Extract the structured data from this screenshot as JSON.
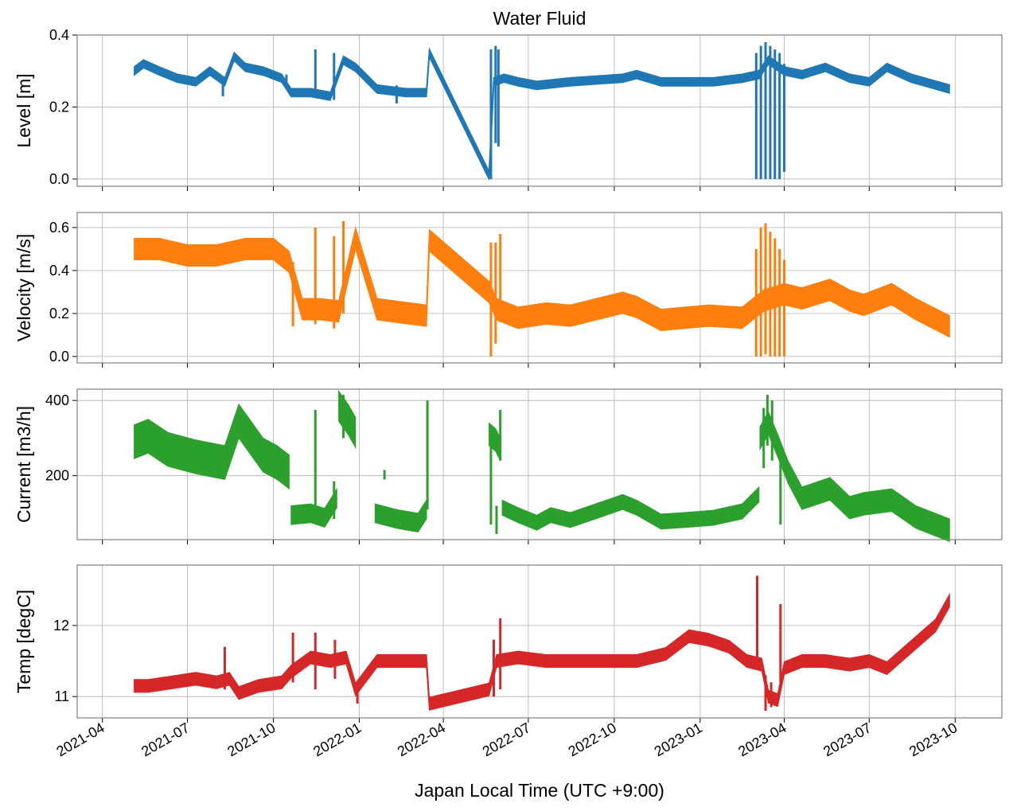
{
  "title": "Water Fluid",
  "chart_data": {
    "type": "line",
    "title": "Water Fluid",
    "xlabel": "Japan Local Time (UTC +9:00)",
    "x_ticks": [
      "2021-04",
      "2021-07",
      "2021-10",
      "2022-01",
      "2022-04",
      "2022-07",
      "2022-10",
      "2023-01",
      "2023-04",
      "2023-07",
      "2023-10"
    ],
    "xlim": [
      "2021-03-05",
      "2023-11-20"
    ],
    "grid": true,
    "panels": [
      {
        "name": "level",
        "ylabel": "Level [m]",
        "color": "#1f77b4",
        "ylim": [
          -0.02,
          0.4
        ],
        "yticks": [
          0.0,
          0.2,
          0.4
        ],
        "ytick_labels": [
          "0.0",
          "0.2",
          "0.4"
        ],
        "segments": [
          {
            "x": [
              "2021-05-05",
              "2021-05-15",
              "2021-06-01",
              "2021-06-20",
              "2021-07-10",
              "2021-07-25",
              "2021-08-10",
              "2021-08-20",
              "2021-09-01",
              "2021-09-20",
              "2021-10-10",
              "2021-10-20",
              "2021-11-10",
              "2021-12-01",
              "2021-12-15",
              "2021-12-28",
              "2022-01-20",
              "2022-02-20",
              "2022-03-14",
              "2022-03-17",
              "2022-05-20",
              "2022-05-25",
              "2022-06-05",
              "2022-06-20",
              "2022-07-10",
              "2022-08-15",
              "2022-10-10",
              "2022-10-25",
              "2022-11-20",
              "2022-12-20",
              "2023-01-15",
              "2023-02-15",
              "2023-03-05",
              "2023-03-15",
              "2023-04-01",
              "2023-04-20",
              "2023-05-15",
              "2023-06-10",
              "2023-07-01",
              "2023-07-20",
              "2023-08-15",
              "2023-09-25"
            ],
            "y": [
              0.3,
              0.32,
              0.3,
              0.28,
              0.27,
              0.3,
              0.27,
              0.34,
              0.31,
              0.3,
              0.28,
              0.24,
              0.24,
              0.23,
              0.33,
              0.31,
              0.25,
              0.24,
              0.24,
              0.35,
              0.01,
              0.27,
              0.28,
              0.27,
              0.26,
              0.27,
              0.28,
              0.29,
              0.27,
              0.27,
              0.27,
              0.28,
              0.29,
              0.33,
              0.3,
              0.29,
              0.31,
              0.28,
              0.27,
              0.31,
              0.28,
              0.25
            ],
            "band": 0.012
          }
        ],
        "spikes": [
          {
            "x": "2021-08-08",
            "y": [
              0.23,
              0.28
            ]
          },
          {
            "x": "2021-10-15",
            "y": [
              0.25,
              0.29
            ]
          },
          {
            "x": "2021-11-15",
            "y": [
              0.23,
              0.36
            ]
          },
          {
            "x": "2021-12-05",
            "y": [
              0.22,
              0.35
            ]
          },
          {
            "x": "2022-02-10",
            "y": [
              0.21,
              0.26
            ]
          },
          {
            "x": "2022-05-22",
            "y": [
              0.0,
              0.36
            ]
          },
          {
            "x": "2022-05-27",
            "y": [
              0.1,
              0.37
            ]
          },
          {
            "x": "2022-05-30",
            "y": [
              0.09,
              0.36
            ]
          },
          {
            "x": "2023-03-02",
            "y": [
              0.0,
              0.35
            ]
          },
          {
            "x": "2023-03-07",
            "y": [
              0.0,
              0.37
            ]
          },
          {
            "x": "2023-03-12",
            "y": [
              0.0,
              0.38
            ]
          },
          {
            "x": "2023-03-17",
            "y": [
              0.0,
              0.37
            ]
          },
          {
            "x": "2023-03-22",
            "y": [
              0.0,
              0.36
            ]
          },
          {
            "x": "2023-03-27",
            "y": [
              0.0,
              0.35
            ]
          },
          {
            "x": "2023-04-01",
            "y": [
              0.02,
              0.32
            ]
          }
        ]
      },
      {
        "name": "velocity",
        "ylabel": "Velocity [m/s]",
        "color": "#ff7f0e",
        "ylim": [
          -0.03,
          0.67
        ],
        "yticks": [
          0.0,
          0.2,
          0.4,
          0.6
        ],
        "ytick_labels": [
          "0.0",
          "0.2",
          "0.4",
          "0.6"
        ],
        "segments": [
          {
            "x": [
              "2021-05-05",
              "2021-06-01",
              "2021-07-01",
              "2021-08-01",
              "2021-09-01",
              "2021-10-01",
              "2021-10-18",
              "2021-11-01",
              "2021-11-20",
              "2021-12-10",
              "2021-12-28",
              "2022-01-20",
              "2022-03-14",
              "2022-03-17",
              "2022-05-20",
              "2022-05-28",
              "2022-06-20",
              "2022-07-20",
              "2022-08-15",
              "2022-10-10",
              "2022-10-25",
              "2022-11-20",
              "2023-01-10",
              "2023-02-15",
              "2023-03-10",
              "2023-04-01",
              "2023-04-20",
              "2023-05-20",
              "2023-06-10",
              "2023-06-25",
              "2023-07-25",
              "2023-08-20",
              "2023-09-25"
            ],
            "y": [
              0.5,
              0.5,
              0.47,
              0.47,
              0.5,
              0.5,
              0.44,
              0.22,
              0.22,
              0.21,
              0.55,
              0.22,
              0.19,
              0.54,
              0.3,
              0.22,
              0.18,
              0.2,
              0.19,
              0.25,
              0.23,
              0.17,
              0.19,
              0.18,
              0.26,
              0.29,
              0.27,
              0.31,
              0.26,
              0.24,
              0.29,
              0.22,
              0.14
            ],
            "band": 0.05
          }
        ],
        "spikes": [
          {
            "x": "2021-10-22",
            "y": [
              0.14,
              0.44
            ]
          },
          {
            "x": "2021-11-15",
            "y": [
              0.15,
              0.6
            ]
          },
          {
            "x": "2021-12-05",
            "y": [
              0.13,
              0.56
            ]
          },
          {
            "x": "2021-12-15",
            "y": [
              0.2,
              0.63
            ]
          },
          {
            "x": "2022-01-25",
            "y": [
              0.17,
              0.26
            ]
          },
          {
            "x": "2022-05-22",
            "y": [
              0.0,
              0.53
            ]
          },
          {
            "x": "2022-05-27",
            "y": [
              0.06,
              0.53
            ]
          },
          {
            "x": "2022-06-01",
            "y": [
              0.16,
              0.57
            ]
          },
          {
            "x": "2023-03-02",
            "y": [
              0.0,
              0.5
            ]
          },
          {
            "x": "2023-03-07",
            "y": [
              0.0,
              0.6
            ]
          },
          {
            "x": "2023-03-12",
            "y": [
              0.01,
              0.62
            ]
          },
          {
            "x": "2023-03-17",
            "y": [
              0.0,
              0.58
            ]
          },
          {
            "x": "2023-03-22",
            "y": [
              0.0,
              0.55
            ]
          },
          {
            "x": "2023-03-27",
            "y": [
              0.0,
              0.5
            ]
          },
          {
            "x": "2023-04-01",
            "y": [
              0.0,
              0.45
            ]
          }
        ]
      },
      {
        "name": "current",
        "ylabel": "Current [m3/h]",
        "color": "#2ca02c",
        "ylim": [
          30,
          430
        ],
        "yticks": [
          200,
          400
        ],
        "ytick_labels": [
          "200",
          "400"
        ],
        "segments": [
          {
            "x": [
              "2021-05-05",
              "2021-05-20",
              "2021-06-10",
              "2021-07-10",
              "2021-08-10",
              "2021-08-25",
              "2021-09-20",
              "2021-10-05",
              "2021-10-18"
            ],
            "y": [
              290,
              305,
              270,
              250,
              235,
              345,
              255,
              235,
              210
            ],
            "band": 45
          },
          {
            "x": [
              "2021-10-20",
              "2021-11-10",
              "2021-11-25",
              "2021-12-08"
            ],
            "y": [
              95,
              100,
              88,
              140
            ],
            "band": 25
          },
          {
            "x": [
              "2021-12-10",
              "2021-12-20",
              "2021-12-28"
            ],
            "y": [
              385,
              350,
              315
            ],
            "band": 40
          },
          {
            "x": [
              "2022-01-18",
              "2022-02-10",
              "2022-03-05",
              "2022-03-14"
            ],
            "y": [
              100,
              85,
              75,
              110
            ],
            "band": 25
          },
          {
            "x": [
              "2022-05-20",
              "2022-05-27",
              "2022-06-01"
            ],
            "y": [
              310,
              295,
              270
            ],
            "band": 30
          },
          {
            "x": [
              "2022-06-03",
              "2022-06-20",
              "2022-07-10",
              "2022-07-25",
              "2022-08-15",
              "2022-10-10",
              "2022-10-25",
              "2022-11-20",
              "2022-12-15",
              "2023-01-15",
              "2023-02-15",
              "2023-03-05"
            ],
            "y": [
              115,
              95,
              75,
              95,
              82,
              130,
              115,
              78,
              82,
              88,
              105,
              150
            ],
            "band": 20
          },
          {
            "x": [
              "2023-03-06",
              "2023-03-15",
              "2023-03-25",
              "2023-04-05",
              "2023-04-20",
              "2023-05-20",
              "2023-06-10",
              "2023-06-25",
              "2023-07-25",
              "2023-08-20",
              "2023-09-25"
            ],
            "y": [
              300,
              340,
              280,
              210,
              140,
              165,
              115,
              125,
              135,
              90,
              55
            ],
            "band": 30
          }
        ],
        "spikes": [
          {
            "x": "2021-11-15",
            "y": [
              90,
              375
            ]
          },
          {
            "x": "2021-12-05",
            "y": [
              85,
              185
            ]
          },
          {
            "x": "2021-12-15",
            "y": [
              300,
              415
            ]
          },
          {
            "x": "2022-01-28",
            "y": [
              190,
              215
            ]
          },
          {
            "x": "2022-03-15",
            "y": [
              110,
              400
            ]
          },
          {
            "x": "2022-05-22",
            "y": [
              70,
              330
            ]
          },
          {
            "x": "2022-05-28",
            "y": [
              45,
              120
            ]
          },
          {
            "x": "2022-06-01",
            "y": [
              240,
              375
            ]
          },
          {
            "x": "2023-03-10",
            "y": [
              220,
              380
            ]
          },
          {
            "x": "2023-03-14",
            "y": [
              280,
              415
            ]
          },
          {
            "x": "2023-03-19",
            "y": [
              240,
              400
            ]
          },
          {
            "x": "2023-03-28",
            "y": [
              70,
              260
            ]
          }
        ]
      },
      {
        "name": "temp",
        "ylabel": "Temp [degC]",
        "color": "#d62728",
        "ylim": [
          10.7,
          12.85
        ],
        "yticks": [
          11,
          12
        ],
        "ytick_labels": [
          "11",
          "12"
        ],
        "segments": [
          {
            "x": [
              "2021-05-05",
              "2021-05-20",
              "2021-06-15",
              "2021-07-10",
              "2021-08-01",
              "2021-08-15",
              "2021-08-25",
              "2021-09-15",
              "2021-10-10",
              "2021-10-20",
              "2021-11-10",
              "2021-12-01",
              "2021-12-18",
              "2021-12-28",
              "2022-01-20",
              "2022-02-20",
              "2022-03-14",
              "2022-03-17",
              "2022-05-20",
              "2022-05-28",
              "2022-06-20",
              "2022-07-20",
              "2022-08-15",
              "2022-10-10",
              "2022-10-25",
              "2022-11-25",
              "2022-12-20",
              "2023-01-10",
              "2023-02-01",
              "2023-02-20",
              "2023-03-08",
              "2023-03-15",
              "2023-03-25",
              "2023-04-01",
              "2023-04-20",
              "2023-05-15",
              "2023-06-10",
              "2023-07-01",
              "2023-07-20",
              "2023-08-15",
              "2023-09-10",
              "2023-09-25"
            ],
            "y": [
              11.15,
              11.15,
              11.2,
              11.25,
              11.2,
              11.25,
              11.05,
              11.15,
              11.2,
              11.35,
              11.55,
              11.5,
              11.55,
              11.1,
              11.5,
              11.5,
              11.5,
              10.9,
              11.1,
              11.5,
              11.55,
              11.5,
              11.5,
              11.5,
              11.5,
              11.6,
              11.85,
              11.8,
              11.7,
              11.5,
              11.45,
              11.0,
              10.95,
              11.4,
              11.5,
              11.5,
              11.45,
              11.5,
              11.4,
              11.7,
              12.0,
              12.35
            ],
            "band": 0.09
          }
        ],
        "spikes": [
          {
            "x": "2021-08-10",
            "y": [
              11.1,
              11.7
            ]
          },
          {
            "x": "2021-10-22",
            "y": [
              11.2,
              11.9
            ]
          },
          {
            "x": "2021-11-15",
            "y": [
              11.1,
              11.9
            ]
          },
          {
            "x": "2021-12-06",
            "y": [
              11.25,
              11.8
            ]
          },
          {
            "x": "2021-12-30",
            "y": [
              10.9,
              11.2
            ]
          },
          {
            "x": "2022-05-25",
            "y": [
              11.0,
              11.8
            ]
          },
          {
            "x": "2022-06-01",
            "y": [
              11.1,
              12.1
            ]
          },
          {
            "x": "2023-03-03",
            "y": [
              11.4,
              12.7
            ]
          },
          {
            "x": "2023-03-12",
            "y": [
              10.8,
              11.3
            ]
          },
          {
            "x": "2023-03-18",
            "y": [
              10.85,
              11.2
            ]
          },
          {
            "x": "2023-03-28",
            "y": [
              11.2,
              12.3
            ]
          }
        ]
      }
    ]
  }
}
